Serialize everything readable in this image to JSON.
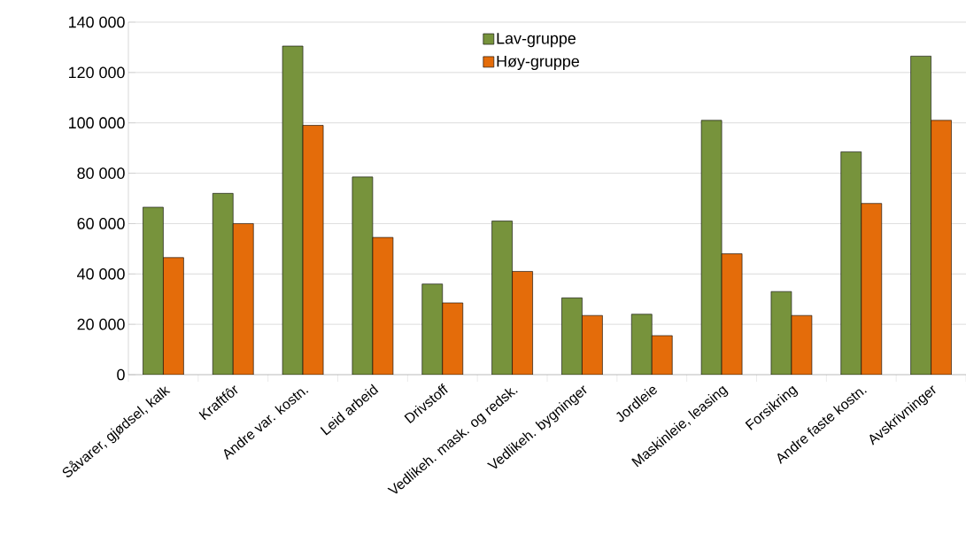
{
  "chart_data": {
    "type": "bar",
    "categories": [
      "Såvarer, gjødsel, kalk",
      "Kraftfôr",
      "Andre var. kostn.",
      "Leid arbeid",
      "Drivstoff",
      "Vedlikeh. mask. og redsk.",
      "Vedlikeh. bygninger",
      "Jordleie",
      "Maskinleie, leasing",
      "Forsikring",
      "Andre faste kostn.",
      "Avskrivninger"
    ],
    "series": [
      {
        "name": "Lav-gruppe",
        "color": "#77933c",
        "values": [
          66500,
          72000,
          130500,
          78500,
          36000,
          61000,
          30500,
          24000,
          101000,
          33000,
          88500,
          126500
        ]
      },
      {
        "name": "Høy-gruppe",
        "color": "#e46c0a",
        "values": [
          46500,
          60000,
          99000,
          54500,
          28500,
          41000,
          23500,
          15500,
          48000,
          23500,
          68000,
          101000
        ]
      }
    ],
    "ylim": [
      0,
      140000
    ],
    "yticks": [
      0,
      {
        "value": 20000,
        "label": "20 000"
      },
      {
        "value": 40000,
        "label": "40 000"
      },
      {
        "value": 60000,
        "label": "60 000"
      },
      {
        "value": 80000,
        "label": "80 000"
      },
      {
        "value": 100000,
        "label": "100 000"
      },
      {
        "value": 120000,
        "label": "120 000"
      },
      {
        "value": 140000,
        "label": "140 000"
      }
    ],
    "grid": "y",
    "legend": "top"
  }
}
